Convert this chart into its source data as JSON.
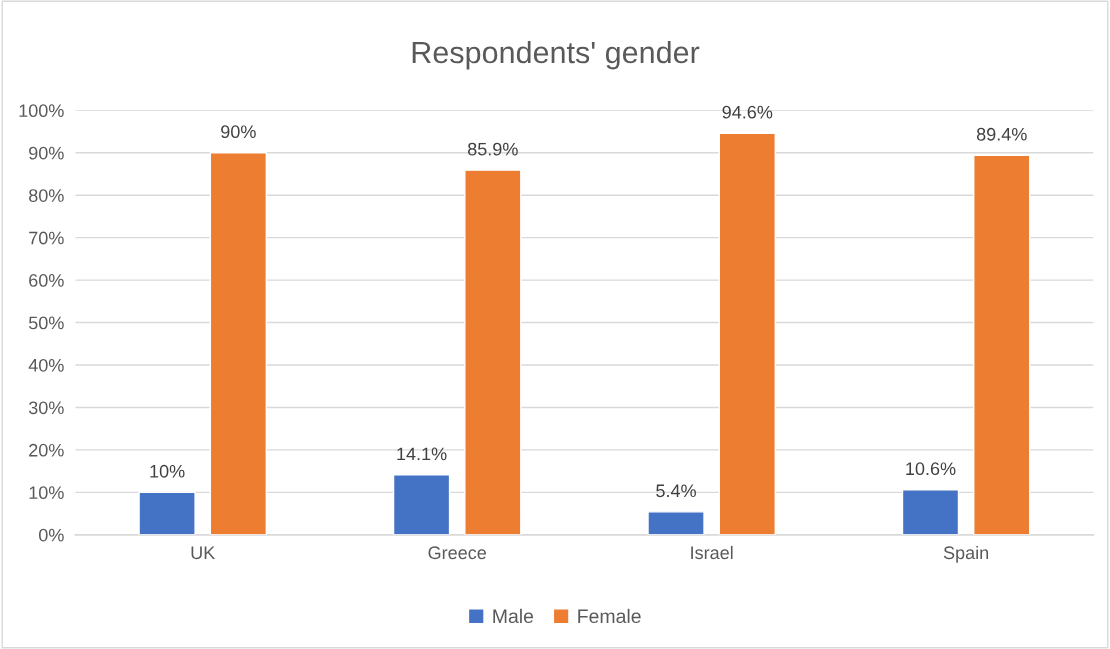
{
  "chart_data": {
    "type": "bar",
    "title": "Respondents' gender",
    "categories": [
      "UK",
      "Greece",
      "Israel",
      "Spain"
    ],
    "series": [
      {
        "name": "Male",
        "color": "#4472c4",
        "values": [
          10,
          14.1,
          5.4,
          10.6
        ],
        "value_labels": [
          "10%",
          "14.1%",
          "5.4%",
          "10.6%"
        ]
      },
      {
        "name": "Female",
        "color": "#ed7d31",
        "values": [
          90,
          85.9,
          94.6,
          89.4
        ],
        "value_labels": [
          "90%",
          "85.9%",
          "94.6%",
          "89.4%"
        ]
      }
    ],
    "ylim": [
      0,
      100
    ],
    "yticks": [
      {
        "value": 0,
        "label": "0%"
      },
      {
        "value": 10,
        "label": "10%"
      },
      {
        "value": 20,
        "label": "20%"
      },
      {
        "value": 30,
        "label": "30%"
      },
      {
        "value": 40,
        "label": "40%"
      },
      {
        "value": 50,
        "label": "50%"
      },
      {
        "value": 60,
        "label": "60%"
      },
      {
        "value": 70,
        "label": "70%"
      },
      {
        "value": 80,
        "label": "80%"
      },
      {
        "value": 90,
        "label": "90%"
      },
      {
        "value": 100,
        "label": "100%"
      }
    ],
    "grid": "y",
    "legend": "bottom"
  }
}
